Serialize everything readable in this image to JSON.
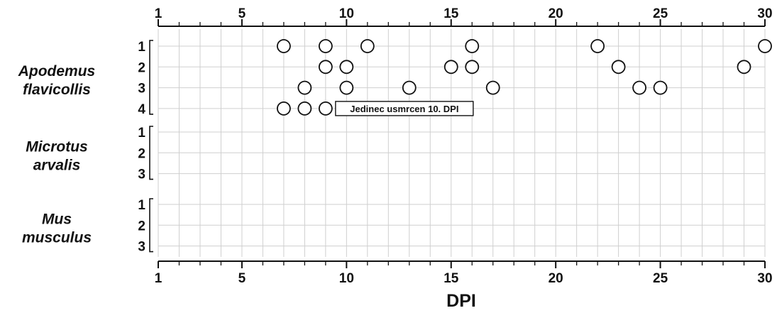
{
  "chart_data": {
    "type": "scatter",
    "title": "",
    "xlabel": "DPI",
    "xlim": [
      1,
      30
    ],
    "x_ticks": [
      1,
      5,
      10,
      15,
      20,
      25,
      30
    ],
    "grid": true,
    "groups": [
      {
        "name": "Apodemus flavicollis",
        "rows": [
          {
            "label": "1",
            "x": [
              7,
              9,
              11,
              16,
              22,
              30
            ]
          },
          {
            "label": "2",
            "x": [
              9,
              10,
              15,
              16,
              23,
              29
            ]
          },
          {
            "label": "3",
            "x": [
              8,
              10,
              13,
              17,
              24,
              25
            ]
          },
          {
            "label": "4",
            "x": [
              7,
              8,
              9
            ]
          }
        ]
      },
      {
        "name": "Microtus arvalis",
        "rows": [
          {
            "label": "1",
            "x": []
          },
          {
            "label": "2",
            "x": []
          },
          {
            "label": "3",
            "x": []
          }
        ]
      },
      {
        "name": "Mus musculus",
        "rows": [
          {
            "label": "1",
            "x": []
          },
          {
            "label": "2",
            "x": []
          },
          {
            "label": "3",
            "x": []
          }
        ]
      }
    ],
    "annotations": [
      {
        "group": 0,
        "row": 3,
        "x": 9,
        "text": "Jedinec usmrcen 10. DPI"
      }
    ]
  },
  "species_label_lines": [
    [
      "Apodemus",
      "flavicollis"
    ],
    [
      "Microtus",
      "arvalis"
    ],
    [
      "Mus",
      "musculus"
    ]
  ]
}
